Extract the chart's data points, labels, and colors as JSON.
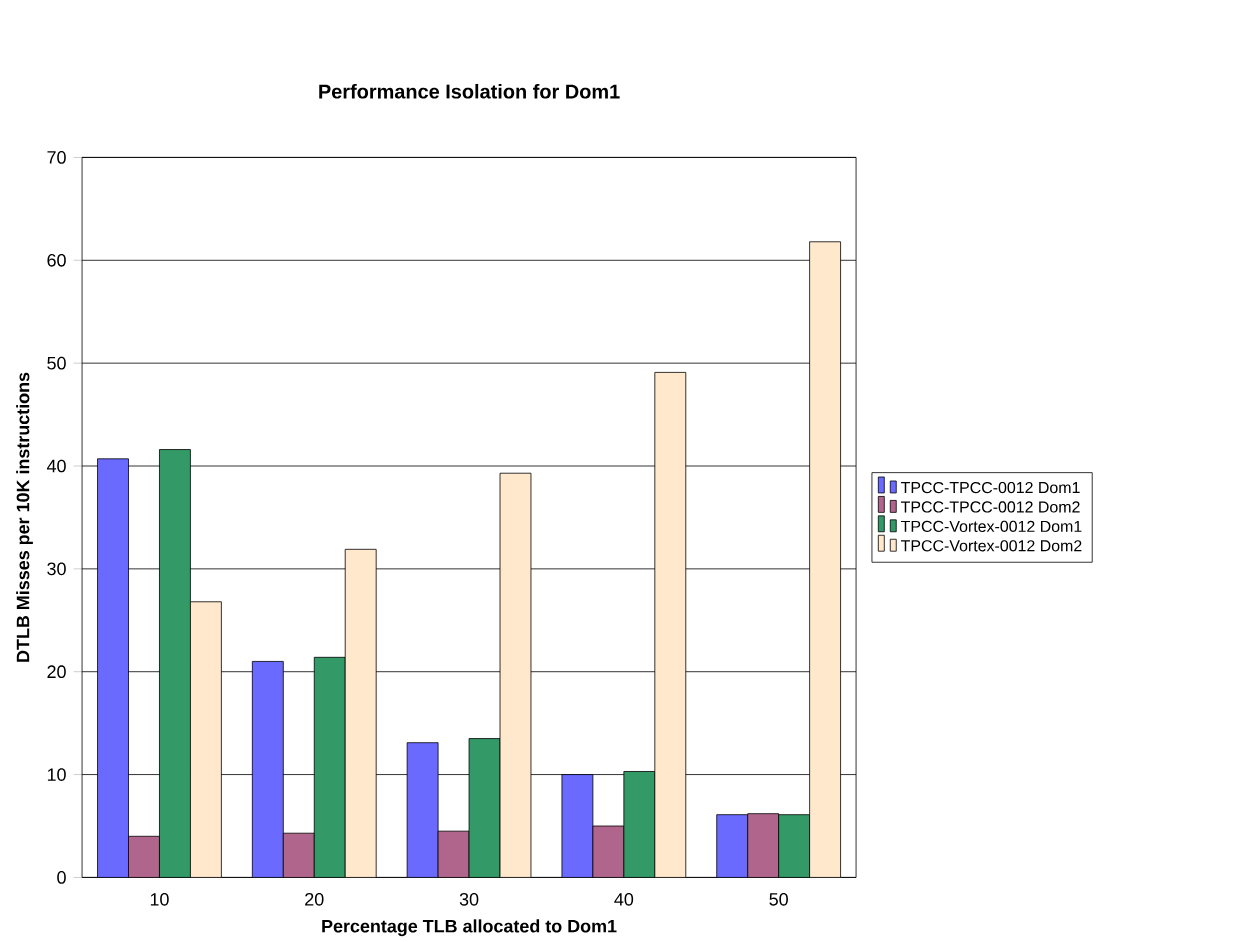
{
  "chart_data": {
    "type": "bar",
    "title": "Performance Isolation for Dom1",
    "xlabel": "Percentage TLB allocated to Dom1",
    "ylabel": "DTLB Misses per 10K instructions",
    "categories": [
      "10",
      "20",
      "30",
      "40",
      "50"
    ],
    "series": [
      {
        "name": "TPCC-TPCC-0012 Dom1",
        "color": "#6a6aff",
        "values": [
          40.7,
          21.0,
          13.1,
          10.0,
          6.1
        ]
      },
      {
        "name": "TPCC-TPCC-0012 Dom2",
        "color": "#b0668c",
        "values": [
          4.0,
          4.3,
          4.5,
          5.0,
          6.2
        ]
      },
      {
        "name": "TPCC-Vortex-0012 Dom1",
        "color": "#339966",
        "values": [
          41.6,
          21.4,
          13.5,
          10.3,
          6.1
        ]
      },
      {
        "name": "TPCC-Vortex-0012 Dom2",
        "color": "#ffe8cc",
        "values": [
          26.8,
          31.9,
          39.3,
          49.1,
          61.8
        ]
      }
    ],
    "ylim": [
      0,
      70
    ],
    "yticks": [
      0,
      10,
      20,
      30,
      40,
      50,
      60,
      70
    ],
    "grid": "y",
    "legend": "right"
  }
}
